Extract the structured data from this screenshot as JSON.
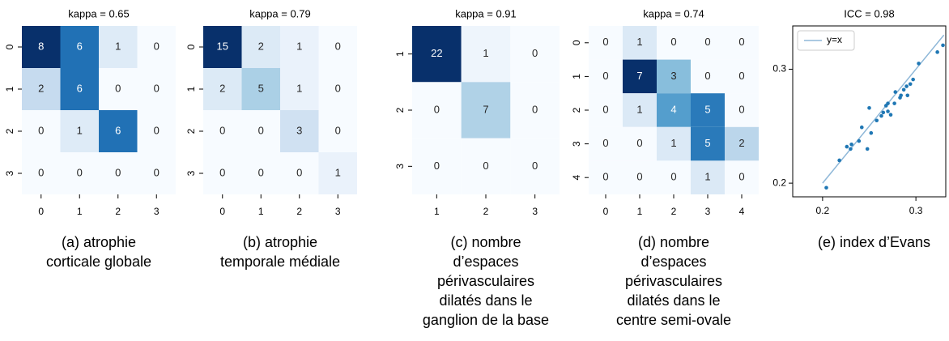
{
  "chart_data": [
    {
      "type": "heatmap",
      "title": "kappa = 0.65",
      "caption": [
        "(a) atrophie",
        "corticale globale"
      ],
      "categories": [
        0,
        1,
        2,
        3
      ],
      "row_categories": [
        0,
        1,
        2,
        3
      ],
      "values": [
        [
          8,
          6,
          1,
          0
        ],
        [
          2,
          6,
          0,
          0
        ],
        [
          0,
          1,
          6,
          0
        ],
        [
          0,
          0,
          0,
          0
        ]
      ],
      "clim": [
        0,
        8
      ],
      "colorscale": [
        "#f7fbff",
        "#deebf7",
        "#c6dbef",
        "#9ecae1",
        "#6baed6",
        "#4292c6",
        "#2171b5",
        "#08519c",
        "#08306b"
      ]
    },
    {
      "type": "heatmap",
      "title": "kappa = 0.79",
      "caption": [
        "(b) atrophie",
        "temporale médiale"
      ],
      "categories": [
        0,
        1,
        2,
        3
      ],
      "row_categories": [
        0,
        1,
        2,
        3
      ],
      "values": [
        [
          15,
          2,
          1,
          0
        ],
        [
          2,
          5,
          1,
          0
        ],
        [
          0,
          0,
          3,
          0
        ],
        [
          0,
          0,
          0,
          1
        ]
      ],
      "clim": [
        0,
        15
      ],
      "colorscale": [
        "#f7fbff",
        "#deebf7",
        "#c6dbef",
        "#9ecae1",
        "#6baed6",
        "#4292c6",
        "#2171b5",
        "#08519c",
        "#08306b"
      ]
    },
    {
      "type": "heatmap",
      "title": "kappa = 0.91",
      "caption": [
        "(c) nombre",
        "d’espaces",
        "périvasculaires",
        "dilatés dans le",
        "ganglion de la base"
      ],
      "categories": [
        1,
        2,
        3
      ],
      "row_categories": [
        1,
        2,
        3
      ],
      "values": [
        [
          22,
          1,
          0
        ],
        [
          0,
          7,
          0
        ],
        [
          0,
          0,
          0
        ]
      ],
      "clim": [
        0,
        22
      ],
      "colorscale": [
        "#f7fbff",
        "#deebf7",
        "#c6dbef",
        "#9ecae1",
        "#6baed6",
        "#4292c6",
        "#2171b5",
        "#08519c",
        "#08306b"
      ]
    },
    {
      "type": "heatmap",
      "title": "kappa = 0.74",
      "caption": [
        "(d) nombre",
        "d’espaces",
        "périvasculaires",
        "dilatés dans le",
        "centre semi-ovale"
      ],
      "categories": [
        0,
        1,
        2,
        3,
        4
      ],
      "row_categories": [
        0,
        1,
        2,
        3,
        4
      ],
      "values": [
        [
          0,
          1,
          0,
          0,
          0
        ],
        [
          0,
          7,
          3,
          0,
          0
        ],
        [
          0,
          1,
          4,
          5,
          0
        ],
        [
          0,
          0,
          1,
          5,
          2
        ],
        [
          0,
          0,
          0,
          1,
          0
        ]
      ],
      "clim": [
        0,
        7
      ],
      "colorscale": [
        "#f7fbff",
        "#deebf7",
        "#c6dbef",
        "#9ecae1",
        "#6baed6",
        "#4292c6",
        "#2171b5",
        "#08519c",
        "#08306b"
      ]
    },
    {
      "type": "scatter",
      "title": "ICC = 0.98",
      "caption": [
        "(e) index d’Evans"
      ],
      "xlim": [
        0.168,
        0.332
      ],
      "ylim": [
        0.188,
        0.338
      ],
      "xticks": [
        0.2,
        0.3
      ],
      "yticks": [
        0.2,
        0.3
      ],
      "legend": "upper left",
      "line": {
        "name": "y=x",
        "color": "#8fb8d8",
        "x": [
          0.2,
          0.33
        ],
        "y": [
          0.2,
          0.33
        ]
      },
      "series": [
        {
          "color": "#1f77b4",
          "x": [
            0.204,
            0.218,
            0.226,
            0.23,
            0.231,
            0.239,
            0.242,
            0.248,
            0.25,
            0.252,
            0.258,
            0.263,
            0.265,
            0.268,
            0.27,
            0.27,
            0.273,
            0.277,
            0.278,
            0.283,
            0.284,
            0.287,
            0.29,
            0.291,
            0.294,
            0.297,
            0.303,
            0.323,
            0.329
          ],
          "y": [
            0.196,
            0.22,
            0.232,
            0.23,
            0.234,
            0.237,
            0.249,
            0.23,
            0.266,
            0.244,
            0.255,
            0.259,
            0.262,
            0.268,
            0.27,
            0.263,
            0.26,
            0.27,
            0.28,
            0.275,
            0.277,
            0.282,
            0.285,
            0.277,
            0.287,
            0.291,
            0.305,
            0.315,
            0.321
          ]
        }
      ]
    }
  ]
}
